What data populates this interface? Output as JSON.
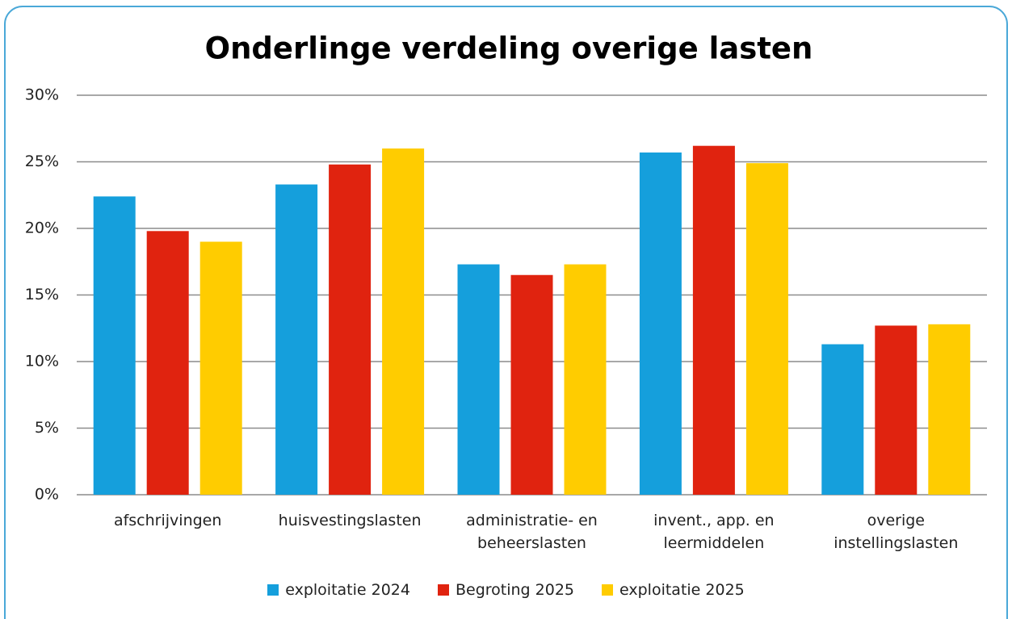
{
  "chart_data": {
    "type": "bar",
    "title": "Onderlinge verdeling overige lasten",
    "categories": [
      "afschrijvingen",
      "huisvestingslasten",
      "administratie- en beheerslasten",
      "invent., app. en leermiddelen",
      "overige instellingslasten"
    ],
    "series": [
      {
        "name": "exploitatie 2024",
        "color": "#159fdc",
        "values": [
          22.4,
          23.3,
          17.3,
          25.7,
          11.3
        ]
      },
      {
        "name": "Begroting 2025",
        "color": "#e0230f",
        "values": [
          19.8,
          24.8,
          16.5,
          26.2,
          12.7
        ]
      },
      {
        "name": "exploitatie 2025",
        "color": "#ffcc00",
        "values": [
          19.0,
          26.0,
          17.3,
          24.9,
          12.8
        ]
      }
    ],
    "ylim": [
      0,
      30
    ],
    "yticks": [
      {
        "value": 0,
        "label": "0%"
      },
      {
        "value": 5,
        "label": "5%"
      },
      {
        "value": 10,
        "label": "10%"
      },
      {
        "value": 15,
        "label": "15%"
      },
      {
        "value": 20,
        "label": "20%"
      },
      {
        "value": 25,
        "label": "25%"
      },
      {
        "value": 30,
        "label": "30%"
      }
    ],
    "grid": true,
    "legend": "bottom"
  }
}
